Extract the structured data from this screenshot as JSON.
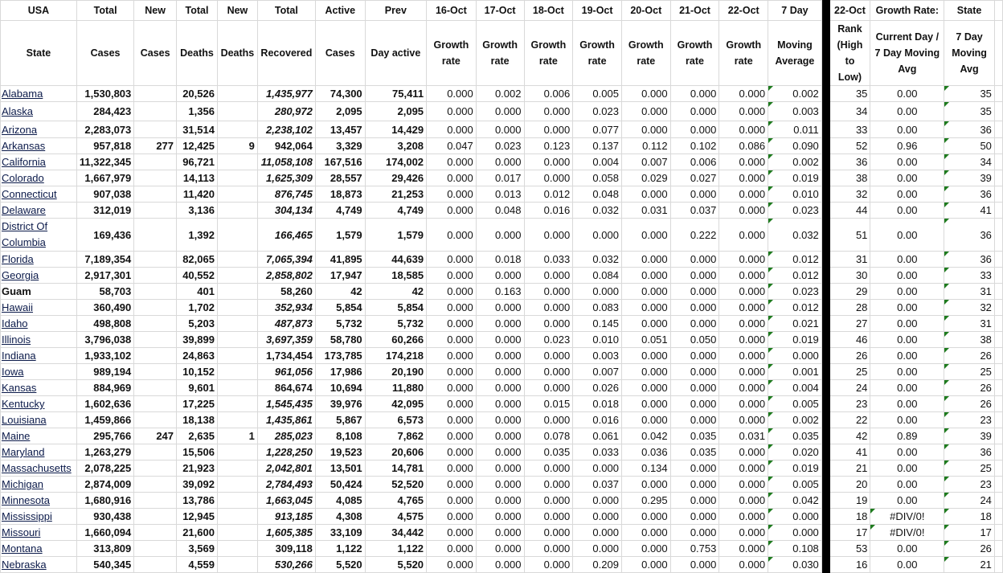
{
  "header_row1": [
    "USA",
    "Total",
    "New",
    "Total",
    "New",
    "Total",
    "Active",
    "Prev",
    "16-Oct",
    "17-Oct",
    "18-Oct",
    "19-Oct",
    "20-Oct",
    "21-Oct",
    "22-Oct",
    "7 Day",
    "22-Oct",
    "Growth Rate:",
    "State"
  ],
  "header_row2": [
    "State",
    "Cases",
    "Cases",
    "Deaths",
    "Deaths",
    "Recovered",
    "Cases",
    "Day active",
    "Growth rate",
    "Growth rate",
    "Growth rate",
    "Growth rate",
    "Growth rate",
    "Growth rate",
    "Growth rate",
    "Moving Average",
    "Rank (High to Low)",
    "Current Day / 7 Day Moving Avg",
    "7 Day Moving Avg"
  ],
  "rows": [
    {
      "state": "Alabama",
      "cases": "1,530,803",
      "new_cases": "",
      "deaths": "20,526",
      "new_deaths": "",
      "recovered": "1,435,977",
      "rec_italic": true,
      "active": "74,300",
      "prev": "75,411",
      "growth": [
        "0.000",
        "0.002",
        "0.006",
        "0.005",
        "0.000",
        "0.000",
        "0.000"
      ],
      "avg7": "0.002",
      "rank": "35",
      "ratio": "0.00",
      "state7": "35"
    },
    {
      "state": "Alaska",
      "cases": "284,423",
      "new_cases": "",
      "deaths": "1,356",
      "new_deaths": "",
      "recovered": "280,972",
      "rec_italic": true,
      "active": "2,095",
      "prev": "2,095",
      "growth": [
        "0.000",
        "0.000",
        "0.000",
        "0.023",
        "0.000",
        "0.000",
        "0.000"
      ],
      "avg7": "0.003",
      "rank": "34",
      "ratio": "0.00",
      "state7": "35"
    },
    {
      "state": "Arizona",
      "cases": "2,283,073",
      "new_cases": "",
      "deaths": "31,514",
      "new_deaths": "",
      "recovered": "2,238,102",
      "rec_italic": true,
      "active": "13,457",
      "prev": "14,429",
      "growth": [
        "0.000",
        "0.000",
        "0.000",
        "0.077",
        "0.000",
        "0.000",
        "0.000"
      ],
      "avg7": "0.011",
      "rank": "33",
      "ratio": "0.00",
      "state7": "36"
    },
    {
      "state": "Arkansas",
      "cases": "957,818",
      "new_cases": "277",
      "deaths": "12,425",
      "new_deaths": "9",
      "recovered": "942,064",
      "rec_italic": false,
      "active": "3,329",
      "prev": "3,208",
      "growth": [
        "0.047",
        "0.023",
        "0.123",
        "0.137",
        "0.112",
        "0.102",
        "0.086"
      ],
      "avg7": "0.090",
      "rank": "52",
      "ratio": "0.96",
      "state7": "50"
    },
    {
      "state": "California",
      "cases": "11,322,345",
      "new_cases": "",
      "deaths": "96,721",
      "new_deaths": "",
      "recovered": "11,058,108",
      "rec_italic": true,
      "active": "167,516",
      "prev": "174,002",
      "growth": [
        "0.000",
        "0.000",
        "0.000",
        "0.004",
        "0.007",
        "0.006",
        "0.000"
      ],
      "avg7": "0.002",
      "rank": "36",
      "ratio": "0.00",
      "state7": "34"
    },
    {
      "state": "Colorado",
      "cases": "1,667,979",
      "new_cases": "",
      "deaths": "14,113",
      "new_deaths": "",
      "recovered": "1,625,309",
      "rec_italic": true,
      "active": "28,557",
      "prev": "29,426",
      "growth": [
        "0.000",
        "0.017",
        "0.000",
        "0.058",
        "0.029",
        "0.027",
        "0.000"
      ],
      "avg7": "0.019",
      "rank": "38",
      "ratio": "0.00",
      "state7": "39"
    },
    {
      "state": "Connecticut",
      "cases": "907,038",
      "new_cases": "",
      "deaths": "11,420",
      "new_deaths": "",
      "recovered": "876,745",
      "rec_italic": true,
      "active": "18,873",
      "prev": "21,253",
      "growth": [
        "0.000",
        "0.013",
        "0.012",
        "0.048",
        "0.000",
        "0.000",
        "0.000"
      ],
      "avg7": "0.010",
      "rank": "32",
      "ratio": "0.00",
      "state7": "36"
    },
    {
      "state": "Delaware",
      "cases": "312,019",
      "new_cases": "",
      "deaths": "3,136",
      "new_deaths": "",
      "recovered": "304,134",
      "rec_italic": true,
      "active": "4,749",
      "prev": "4,749",
      "growth": [
        "0.000",
        "0.048",
        "0.016",
        "0.032",
        "0.031",
        "0.037",
        "0.000"
      ],
      "avg7": "0.023",
      "rank": "44",
      "ratio": "0.00",
      "state7": "41"
    },
    {
      "state": "District Of Columbia",
      "cases": "169,436",
      "new_cases": "",
      "deaths": "1,392",
      "new_deaths": "",
      "recovered": "166,465",
      "rec_italic": true,
      "active": "1,579",
      "prev": "1,579",
      "growth": [
        "0.000",
        "0.000",
        "0.000",
        "0.000",
        "0.000",
        "0.222",
        "0.000"
      ],
      "avg7": "0.032",
      "rank": "51",
      "ratio": "0.00",
      "state7": "36"
    },
    {
      "state": "Florida",
      "cases": "7,189,354",
      "new_cases": "",
      "deaths": "82,065",
      "new_deaths": "",
      "recovered": "7,065,394",
      "rec_italic": true,
      "active": "41,895",
      "prev": "44,639",
      "growth": [
        "0.000",
        "0.018",
        "0.033",
        "0.032",
        "0.000",
        "0.000",
        "0.000"
      ],
      "avg7": "0.012",
      "rank": "31",
      "ratio": "0.00",
      "state7": "36"
    },
    {
      "state": "Georgia",
      "cases": "2,917,301",
      "new_cases": "",
      "deaths": "40,552",
      "new_deaths": "",
      "recovered": "2,858,802",
      "rec_italic": true,
      "active": "17,947",
      "prev": "18,585",
      "growth": [
        "0.000",
        "0.000",
        "0.000",
        "0.084",
        "0.000",
        "0.000",
        "0.000"
      ],
      "avg7": "0.012",
      "rank": "30",
      "ratio": "0.00",
      "state7": "33"
    },
    {
      "state": "Guam",
      "plain": true,
      "cases": "58,703",
      "new_cases": "",
      "deaths": "401",
      "new_deaths": "",
      "recovered": "58,260",
      "rec_italic": false,
      "active": "42",
      "prev": "42",
      "growth": [
        "0.000",
        "0.163",
        "0.000",
        "0.000",
        "0.000",
        "0.000",
        "0.000"
      ],
      "avg7": "0.023",
      "rank": "29",
      "ratio": "0.00",
      "state7": "31"
    },
    {
      "state": "Hawaii",
      "cases": "360,490",
      "new_cases": "",
      "deaths": "1,702",
      "new_deaths": "",
      "recovered": "352,934",
      "rec_italic": true,
      "active": "5,854",
      "prev": "5,854",
      "growth": [
        "0.000",
        "0.000",
        "0.000",
        "0.083",
        "0.000",
        "0.000",
        "0.000"
      ],
      "avg7": "0.012",
      "rank": "28",
      "ratio": "0.00",
      "state7": "32"
    },
    {
      "state": "Idaho",
      "cases": "498,808",
      "new_cases": "",
      "deaths": "5,203",
      "new_deaths": "",
      "recovered": "487,873",
      "rec_italic": true,
      "active": "5,732",
      "prev": "5,732",
      "growth": [
        "0.000",
        "0.000",
        "0.000",
        "0.145",
        "0.000",
        "0.000",
        "0.000"
      ],
      "avg7": "0.021",
      "rank": "27",
      "ratio": "0.00",
      "state7": "31"
    },
    {
      "state": "Illinois",
      "cases": "3,796,038",
      "new_cases": "",
      "deaths": "39,899",
      "new_deaths": "",
      "recovered": "3,697,359",
      "rec_italic": true,
      "active": "58,780",
      "prev": "60,266",
      "growth": [
        "0.000",
        "0.000",
        "0.023",
        "0.010",
        "0.051",
        "0.050",
        "0.000"
      ],
      "avg7": "0.019",
      "rank": "46",
      "ratio": "0.00",
      "state7": "38"
    },
    {
      "state": "Indiana",
      "cases": "1,933,102",
      "new_cases": "",
      "deaths": "24,863",
      "new_deaths": "",
      "recovered": "1,734,454",
      "rec_italic": false,
      "active": "173,785",
      "prev": "174,218",
      "growth": [
        "0.000",
        "0.000",
        "0.000",
        "0.003",
        "0.000",
        "0.000",
        "0.000"
      ],
      "avg7": "0.000",
      "rank": "26",
      "ratio": "0.00",
      "state7": "26"
    },
    {
      "state": "Iowa",
      "cases": "989,194",
      "new_cases": "",
      "deaths": "10,152",
      "new_deaths": "",
      "recovered": "961,056",
      "rec_italic": true,
      "active": "17,986",
      "prev": "20,190",
      "growth": [
        "0.000",
        "0.000",
        "0.000",
        "0.007",
        "0.000",
        "0.000",
        "0.000"
      ],
      "avg7": "0.001",
      "rank": "25",
      "ratio": "0.00",
      "state7": "25"
    },
    {
      "state": "Kansas",
      "cases": "884,969",
      "new_cases": "",
      "deaths": "9,601",
      "new_deaths": "",
      "recovered": "864,674",
      "rec_italic": false,
      "active": "10,694",
      "prev": "11,880",
      "growth": [
        "0.000",
        "0.000",
        "0.000",
        "0.026",
        "0.000",
        "0.000",
        "0.000"
      ],
      "avg7": "0.004",
      "rank": "24",
      "ratio": "0.00",
      "state7": "26"
    },
    {
      "state": "Kentucky",
      "cases": "1,602,636",
      "new_cases": "",
      "deaths": "17,225",
      "new_deaths": "",
      "recovered": "1,545,435",
      "rec_italic": true,
      "active": "39,976",
      "prev": "42,095",
      "growth": [
        "0.000",
        "0.000",
        "0.015",
        "0.018",
        "0.000",
        "0.000",
        "0.000"
      ],
      "avg7": "0.005",
      "rank": "23",
      "ratio": "0.00",
      "state7": "26"
    },
    {
      "state": "Louisiana",
      "cases": "1,459,866",
      "new_cases": "",
      "deaths": "18,138",
      "new_deaths": "",
      "recovered": "1,435,861",
      "rec_italic": true,
      "active": "5,867",
      "prev": "6,573",
      "growth": [
        "0.000",
        "0.000",
        "0.000",
        "0.016",
        "0.000",
        "0.000",
        "0.000"
      ],
      "avg7": "0.002",
      "rank": "22",
      "ratio": "0.00",
      "state7": "23"
    },
    {
      "state": "Maine",
      "cases": "295,766",
      "new_cases": "247",
      "deaths": "2,635",
      "new_deaths": "1",
      "recovered": "285,023",
      "rec_italic": true,
      "active": "8,108",
      "prev": "7,862",
      "growth": [
        "0.000",
        "0.000",
        "0.078",
        "0.061",
        "0.042",
        "0.035",
        "0.031"
      ],
      "avg7": "0.035",
      "rank": "42",
      "ratio": "0.89",
      "state7": "39"
    },
    {
      "state": "Maryland",
      "cases": "1,263,279",
      "new_cases": "",
      "deaths": "15,506",
      "new_deaths": "",
      "recovered": "1,228,250",
      "rec_italic": true,
      "active": "19,523",
      "prev": "20,606",
      "growth": [
        "0.000",
        "0.000",
        "0.035",
        "0.033",
        "0.036",
        "0.035",
        "0.000"
      ],
      "avg7": "0.020",
      "rank": "41",
      "ratio": "0.00",
      "state7": "36"
    },
    {
      "state": "Massachusetts",
      "cases": "2,078,225",
      "new_cases": "",
      "deaths": "21,923",
      "new_deaths": "",
      "recovered": "2,042,801",
      "rec_italic": true,
      "active": "13,501",
      "prev": "14,781",
      "growth": [
        "0.000",
        "0.000",
        "0.000",
        "0.000",
        "0.134",
        "0.000",
        "0.000"
      ],
      "avg7": "0.019",
      "rank": "21",
      "ratio": "0.00",
      "state7": "25"
    },
    {
      "state": "Michigan",
      "cases": "2,874,009",
      "new_cases": "",
      "deaths": "39,092",
      "new_deaths": "",
      "recovered": "2,784,493",
      "rec_italic": true,
      "active": "50,424",
      "prev": "52,520",
      "growth": [
        "0.000",
        "0.000",
        "0.000",
        "0.037",
        "0.000",
        "0.000",
        "0.000"
      ],
      "avg7": "0.005",
      "rank": "20",
      "ratio": "0.00",
      "state7": "23"
    },
    {
      "state": "Minnesota",
      "cases": "1,680,916",
      "new_cases": "",
      "deaths": "13,786",
      "new_deaths": "",
      "recovered": "1,663,045",
      "rec_italic": true,
      "active": "4,085",
      "prev": "4,765",
      "growth": [
        "0.000",
        "0.000",
        "0.000",
        "0.000",
        "0.295",
        "0.000",
        "0.000"
      ],
      "avg7": "0.042",
      "rank": "19",
      "ratio": "0.00",
      "state7": "24"
    },
    {
      "state": "Mississippi",
      "cases": "930,438",
      "new_cases": "",
      "deaths": "12,945",
      "new_deaths": "",
      "recovered": "913,185",
      "rec_italic": true,
      "active": "4,308",
      "prev": "4,575",
      "growth": [
        "0.000",
        "0.000",
        "0.000",
        "0.000",
        "0.000",
        "0.000",
        "0.000"
      ],
      "avg7": "0.000",
      "rank": "18",
      "ratio": "#DIV/0!",
      "state7": "18"
    },
    {
      "state": "Missouri",
      "cases": "1,660,094",
      "new_cases": "",
      "deaths": "21,600",
      "new_deaths": "",
      "recovered": "1,605,385",
      "rec_italic": true,
      "active": "33,109",
      "prev": "34,442",
      "growth": [
        "0.000",
        "0.000",
        "0.000",
        "0.000",
        "0.000",
        "0.000",
        "0.000"
      ],
      "avg7": "0.000",
      "rank": "17",
      "ratio": "#DIV/0!",
      "state7": "17"
    },
    {
      "state": "Montana",
      "cases": "313,809",
      "new_cases": "",
      "deaths": "3,569",
      "new_deaths": "",
      "recovered": "309,118",
      "rec_italic": false,
      "active": "1,122",
      "prev": "1,122",
      "growth": [
        "0.000",
        "0.000",
        "0.000",
        "0.000",
        "0.000",
        "0.753",
        "0.000"
      ],
      "avg7": "0.108",
      "rank": "53",
      "ratio": "0.00",
      "state7": "26"
    },
    {
      "state": "Nebraska",
      "cases": "540,345",
      "new_cases": "",
      "deaths": "4,559",
      "new_deaths": "",
      "recovered": "530,266",
      "rec_italic": true,
      "active": "5,520",
      "prev": "5,520",
      "growth": [
        "0.000",
        "0.000",
        "0.000",
        "0.209",
        "0.000",
        "0.000",
        "0.000"
      ],
      "avg7": "0.030",
      "rank": "16",
      "ratio": "0.00",
      "state7": "21"
    }
  ],
  "colors": {
    "indicator": "#1e7b1e",
    "separator": "#000000",
    "grid": "#d9d9d9"
  }
}
